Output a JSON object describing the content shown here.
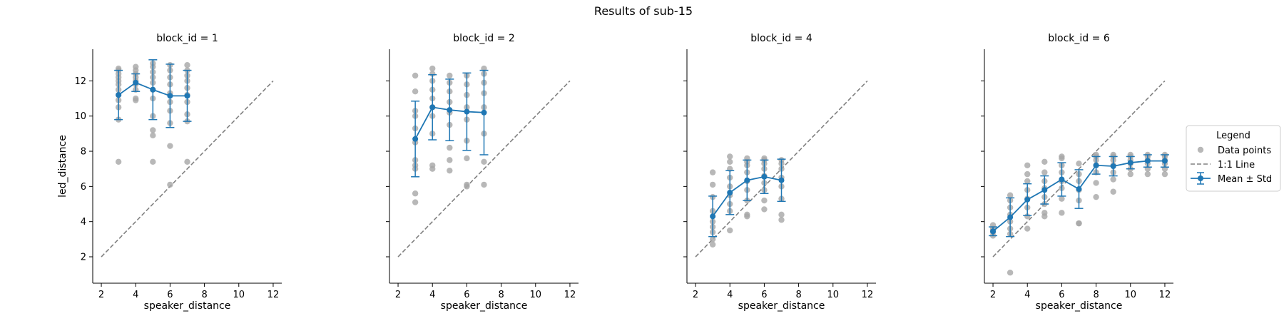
{
  "title": "Results of sub-15",
  "colors": {
    "data_points": "#a6a6a6",
    "mean_line": "#1f77b4",
    "identity_line": "#808080",
    "axis": "#000000"
  },
  "legend": {
    "title": "Legend",
    "placement": "right",
    "items": [
      {
        "label": "Data points",
        "kind": "marker"
      },
      {
        "label": "1:1 Line",
        "kind": "dashed-line"
      },
      {
        "label": "Mean ± Std",
        "kind": "errorbar-line"
      }
    ]
  },
  "chart_data": [
    {
      "type": "scatter",
      "title": "block_id = 1",
      "xlabel": "speaker_distance",
      "ylabel": "led_distance",
      "xlim": [
        1.5,
        12.5
      ],
      "ylim": [
        0.5,
        13.8
      ],
      "xticks": [
        2,
        4,
        6,
        8,
        10,
        12
      ],
      "yticks": [
        2,
        4,
        6,
        8,
        10,
        12
      ],
      "identity_line": [
        2,
        12
      ],
      "points": [
        {
          "x": 3,
          "ys": [
            7.4,
            9.8,
            10.5,
            10.9,
            11.2,
            11.5,
            11.8,
            12.0,
            12.2,
            12.4,
            12.6,
            12.7
          ]
        },
        {
          "x": 4,
          "ys": [
            10.9,
            11.0,
            11.5,
            11.8,
            12.0,
            12.2,
            12.4,
            12.6,
            12.8
          ]
        },
        {
          "x": 5,
          "ys": [
            7.4,
            8.9,
            9.2,
            10.0,
            11.0,
            11.5,
            11.9,
            12.2,
            12.5,
            12.8,
            13.0
          ]
        },
        {
          "x": 6,
          "ys": [
            6.1,
            8.3,
            9.6,
            10.3,
            10.8,
            11.3,
            11.8,
            12.2,
            12.6,
            12.9
          ]
        },
        {
          "x": 7,
          "ys": [
            7.4,
            9.7,
            10.1,
            10.8,
            11.2,
            11.6,
            12.0,
            12.3,
            12.6,
            12.9
          ]
        }
      ],
      "mean": {
        "x": [
          3,
          4,
          5,
          6,
          7
        ],
        "y": [
          11.2,
          11.9,
          11.5,
          11.15,
          11.15
        ],
        "std": [
          1.4,
          0.5,
          1.7,
          1.8,
          1.45
        ]
      }
    },
    {
      "type": "scatter",
      "title": "block_id = 2",
      "xlabel": "speaker_distance",
      "ylabel": "",
      "xlim": [
        1.5,
        12.5
      ],
      "ylim": [
        0.5,
        13.8
      ],
      "xticks": [
        2,
        4,
        6,
        8,
        10,
        12
      ],
      "yticks": [
        2,
        4,
        6,
        8,
        10,
        12
      ],
      "identity_line": [
        2,
        12
      ],
      "points": [
        {
          "x": 3,
          "ys": [
            5.1,
            5.6,
            7.0,
            7.2,
            7.5,
            8.5,
            9.3,
            10.0,
            10.3,
            11.4,
            12.3
          ]
        },
        {
          "x": 4,
          "ys": [
            7.0,
            7.2,
            9.0,
            10.0,
            10.5,
            11.0,
            11.5,
            12.0,
            12.4,
            12.7
          ]
        },
        {
          "x": 5,
          "ys": [
            6.9,
            7.5,
            8.2,
            9.5,
            10.2,
            10.8,
            11.4,
            11.9,
            12.3
          ]
        },
        {
          "x": 6,
          "ys": [
            6.0,
            6.1,
            7.6,
            8.6,
            9.8,
            10.5,
            11.2,
            11.8,
            12.3
          ]
        },
        {
          "x": 7,
          "ys": [
            6.1,
            7.4,
            9.0,
            10.5,
            11.3,
            11.9,
            12.4,
            12.7
          ]
        }
      ],
      "mean": {
        "x": [
          3,
          4,
          5,
          6,
          7
        ],
        "y": [
          8.7,
          10.5,
          10.35,
          10.25,
          10.2
        ],
        "std": [
          2.15,
          1.85,
          1.75,
          2.2,
          2.4
        ]
      }
    },
    {
      "type": "scatter",
      "title": "block_id = 4",
      "xlabel": "speaker_distance",
      "ylabel": "",
      "xlim": [
        1.5,
        12.5
      ],
      "ylim": [
        0.5,
        13.8
      ],
      "xticks": [
        2,
        4,
        6,
        8,
        10,
        12
      ],
      "yticks": [
        2,
        4,
        6,
        8,
        10,
        12
      ],
      "identity_line": [
        2,
        12
      ],
      "points": [
        {
          "x": 3,
          "ys": [
            2.7,
            3.0,
            3.4,
            3.7,
            4.0,
            4.6,
            5.4,
            6.1,
            6.8
          ]
        },
        {
          "x": 4,
          "ys": [
            3.5,
            4.6,
            5.0,
            5.5,
            6.0,
            6.5,
            7.0,
            7.4,
            7.7
          ]
        },
        {
          "x": 5,
          "ys": [
            4.3,
            4.4,
            5.2,
            5.8,
            6.3,
            6.8,
            7.2,
            7.4,
            7.6
          ]
        },
        {
          "x": 6,
          "ys": [
            4.7,
            5.2,
            5.8,
            6.2,
            6.6,
            7.0,
            7.3,
            7.5,
            7.6
          ]
        },
        {
          "x": 7,
          "ys": [
            4.1,
            4.4,
            5.3,
            6.0,
            6.5,
            7.0,
            7.3,
            7.5
          ]
        }
      ],
      "mean": {
        "x": [
          3,
          4,
          5,
          6,
          7
        ],
        "y": [
          4.3,
          5.65,
          6.35,
          6.55,
          6.35
        ],
        "std": [
          1.15,
          1.25,
          1.15,
          0.95,
          1.2
        ]
      }
    },
    {
      "type": "scatter",
      "title": "block_id = 6",
      "xlabel": "speaker_distance",
      "ylabel": "",
      "xlim": [
        1.5,
        12.5
      ],
      "ylim": [
        0.5,
        13.8
      ],
      "xticks": [
        2,
        4,
        6,
        8,
        10,
        12
      ],
      "yticks": [
        2,
        4,
        6,
        8,
        10,
        12
      ],
      "identity_line": [
        2,
        12
      ],
      "points": [
        {
          "x": 2,
          "ys": [
            3.2,
            3.4,
            3.5,
            3.6,
            3.8
          ]
        },
        {
          "x": 3,
          "ys": [
            1.1,
            3.3,
            3.6,
            4.0,
            4.4,
            4.8,
            5.2,
            5.5
          ]
        },
        {
          "x": 4,
          "ys": [
            3.6,
            4.3,
            4.8,
            5.3,
            5.8,
            6.3,
            6.7,
            7.2
          ]
        },
        {
          "x": 5,
          "ys": [
            4.3,
            4.5,
            5.0,
            5.4,
            5.9,
            6.3,
            6.8,
            7.4
          ]
        },
        {
          "x": 6,
          "ys": [
            4.5,
            5.3,
            5.9,
            6.3,
            6.8,
            7.2,
            7.6,
            7.7
          ]
        },
        {
          "x": 7,
          "ys": [
            3.9,
            3.9,
            5.2,
            5.8,
            6.3,
            6.7,
            7.3
          ]
        },
        {
          "x": 8,
          "ys": [
            5.4,
            6.2,
            6.8,
            7.2,
            7.5,
            7.7,
            7.8
          ]
        },
        {
          "x": 9,
          "ys": [
            5.7,
            6.4,
            6.8,
            7.2,
            7.5,
            7.7,
            7.8
          ]
        },
        {
          "x": 10,
          "ys": [
            6.7,
            7.0,
            7.3,
            7.5,
            7.7,
            7.8
          ]
        },
        {
          "x": 11,
          "ys": [
            6.7,
            7.0,
            7.3,
            7.5,
            7.7,
            7.8
          ]
        },
        {
          "x": 12,
          "ys": [
            6.7,
            7.0,
            7.3,
            7.5,
            7.7,
            7.8
          ]
        }
      ],
      "mean": {
        "x": [
          2,
          3,
          4,
          5,
          6,
          7,
          8,
          9,
          10,
          11,
          12
        ],
        "y": [
          3.45,
          4.25,
          5.25,
          5.8,
          6.4,
          5.85,
          7.2,
          7.15,
          7.35,
          7.45,
          7.45
        ],
        "std": [
          0.25,
          1.1,
          0.9,
          0.8,
          0.95,
          1.1,
          0.5,
          0.55,
          0.35,
          0.35,
          0.35
        ]
      }
    }
  ]
}
